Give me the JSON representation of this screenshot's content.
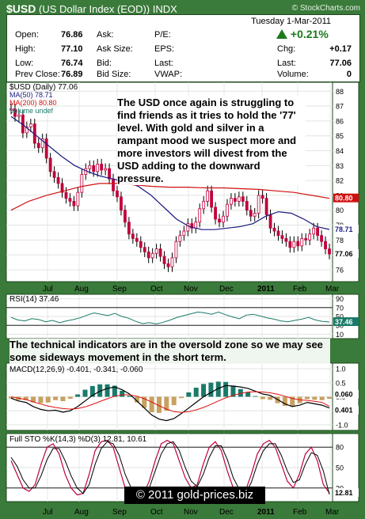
{
  "header": {
    "symbol": "$USD",
    "name": "(US Dollar Index (EOD))",
    "exchange": "INDX",
    "site": "© StockCharts.com"
  },
  "quote": {
    "date": "Tuesday  1-Mar-2011",
    "open_label": "Open:",
    "open": "76.86",
    "high_label": "High:",
    "high": "77.10",
    "low_label": "Low:",
    "low": "76.74",
    "prev_label": "Prev Close:",
    "prev": "76.89",
    "ask_label": "Ask:",
    "asksize_label": "Ask Size:",
    "bid_label": "Bid:",
    "bidsize_label": "Bid Size:",
    "pe_label": "P/E:",
    "eps_label": "EPS:",
    "last_label": "Last:",
    "vwap_label": "VWAP:",
    "change_pct": "+0.21%",
    "chg_label": "Chg:",
    "chg": "+0.17",
    "last2_label": "Last:",
    "last": "77.06",
    "volume_label": "Volume:",
    "volume": "0"
  },
  "colors": {
    "price": "#c0003c",
    "ma50": "#1a1a80",
    "ma200": "#d01010",
    "macd": "#000000",
    "signal": "#e01010",
    "hist": "#1a7a6a",
    "k": "#c0003c",
    "d": "#000000",
    "rsi": "#1a7a6a"
  },
  "notes": {
    "main": "The USD once again is struggling to find friends as it tries to hold the '77' level. With gold and silver in a rampant mood we suspect more and more investors will divest from the USD adding to the downward pressure.",
    "indicators": "The technical indicators are in the oversold zone so we may see some sideways movement in the short term."
  },
  "copyright": "© 2011 gold-prices.biz",
  "chart_data": [
    {
      "type": "candlestick",
      "title": "$USD (Daily) 77.06",
      "legend": [
        "$USD (Daily) 77.06",
        "MA(50) 78.71",
        "MA(200) 80.80",
        "Volume undef"
      ],
      "x_ticks": [
        "Jul",
        "Aug",
        "Sep",
        "Oct",
        "Nov",
        "Dec",
        "2011",
        "Feb",
        "Mar"
      ],
      "y_ticks": [
        76,
        77,
        78,
        79,
        80,
        81,
        82,
        83,
        84,
        85,
        86,
        87,
        88
      ],
      "ylim": [
        75.2,
        88.6
      ],
      "right_labels": [
        "80.80",
        "78.71",
        "77.06"
      ],
      "series": [
        {
          "name": "$USD (Daily) 77.06",
          "values": [
            86.8,
            86.3,
            86.4,
            85.2,
            85.6,
            85.8,
            84.5,
            84.2,
            84.8,
            83.5,
            82.6,
            82.2,
            81.8,
            81.2,
            80.8,
            80.6,
            80.3,
            81.2,
            82.4,
            82.8,
            83.0,
            82.6,
            83.1,
            82.7,
            82.8,
            82.1,
            81.3,
            80.9,
            80.0,
            79.2,
            78.4,
            78.1,
            77.9,
            77.5,
            77.2,
            76.8,
            77.1,
            77.4,
            76.9,
            76.4,
            76.2,
            76.8,
            77.9,
            78.3,
            78.6,
            79.1,
            78.8,
            79.2,
            80.1,
            80.6,
            81.3,
            80.2,
            79.4,
            79.2,
            79.6,
            80.4,
            80.8,
            80.6,
            80.9,
            80.6,
            80.0,
            79.6,
            79.8,
            81.0,
            80.8,
            79.7,
            78.8,
            78.6,
            78.3,
            78.1,
            77.9,
            77.5,
            77.9,
            77.6,
            78.1,
            78.0,
            78.4,
            78.8,
            78.3,
            77.9,
            77.4,
            77.06
          ]
        },
        {
          "name": "MA(50) 78.71",
          "values": [
            86.3,
            85.7,
            85.0,
            84.3,
            83.6,
            83.0,
            82.6,
            82.3,
            82.1,
            81.9,
            81.6,
            81.0,
            80.2,
            79.4,
            78.9,
            78.7,
            78.7,
            78.8,
            78.9,
            79.1,
            79.6,
            79.9,
            79.8,
            79.4,
            78.9,
            78.71
          ]
        },
        {
          "name": "MA(200) 80.80",
          "values": [
            80.0,
            80.6,
            81.0,
            81.3,
            81.6,
            81.8,
            81.8,
            81.7,
            81.6,
            81.55,
            81.55,
            81.5,
            81.5,
            81.45,
            81.4,
            81.3,
            81.2,
            81.0,
            80.8
          ]
        }
      ]
    },
    {
      "type": "line",
      "title": "RSI(14) 37.46",
      "y_ticks": [
        10,
        30,
        50,
        70,
        90
      ],
      "ylim": [
        0,
        100
      ],
      "right_labels": [
        "37.46"
      ],
      "series": [
        {
          "name": "RSI(14) 37.46",
          "values": [
            48,
            42,
            40,
            45,
            43,
            38,
            41,
            36,
            40,
            43,
            47,
            53,
            58,
            55,
            52,
            57,
            50,
            46,
            39,
            34,
            36,
            33,
            37,
            42,
            48,
            52,
            56,
            60,
            58,
            55,
            60,
            54,
            49,
            45,
            53,
            55,
            51,
            47,
            44,
            40,
            38,
            41,
            44,
            48,
            42,
            39,
            37.46
          ]
        }
      ]
    },
    {
      "type": "line",
      "title": "MACD(12,26,9) -0.401, -0.341, -0.060",
      "y_ticks": [
        -1.0,
        -0.5,
        0.0,
        0.5,
        1.0
      ],
      "ylim": [
        -1.2,
        1.2
      ],
      "right_labels": [
        "0.060",
        "0.401"
      ],
      "series": [
        {
          "name": "MACD(12,26,9)",
          "values": [
            -0.05,
            -0.15,
            -0.2,
            -0.35,
            -0.45,
            -0.5,
            -0.48,
            -0.55,
            -0.5,
            -0.35,
            -0.15,
            0.05,
            0.2,
            0.3,
            0.35,
            0.25,
            0.1,
            -0.15,
            -0.4,
            -0.65,
            -0.8,
            -0.85,
            -0.78,
            -0.6,
            -0.4,
            -0.2,
            0.0,
            0.15,
            0.3,
            0.4,
            0.38,
            0.35,
            0.3,
            0.2,
            0.1,
            0.05,
            -0.1,
            -0.25,
            -0.35,
            -0.3,
            -0.2,
            -0.25,
            -0.3,
            -0.401
          ]
        },
        {
          "name": "signal",
          "values": [
            0.0,
            -0.05,
            -0.1,
            -0.18,
            -0.26,
            -0.33,
            -0.38,
            -0.42,
            -0.44,
            -0.42,
            -0.36,
            -0.27,
            -0.17,
            -0.07,
            0.02,
            0.07,
            0.07,
            0.02,
            -0.07,
            -0.19,
            -0.32,
            -0.44,
            -0.53,
            -0.56,
            -0.53,
            -0.47,
            -0.38,
            -0.27,
            -0.15,
            -0.04,
            0.05,
            0.12,
            0.17,
            0.18,
            0.17,
            0.14,
            0.09,
            0.02,
            -0.06,
            -0.11,
            -0.13,
            -0.16,
            -0.2,
            -0.341
          ]
        }
      ]
    },
    {
      "type": "line",
      "title": "Full STO %K(14,3) %D(3) 12.81, 10.61",
      "y_ticks": [
        20,
        50,
        80
      ],
      "ylim": [
        0,
        100
      ],
      "right_labels": [
        "12.81"
      ],
      "series": [
        {
          "name": "%K(14,3)",
          "values": [
            60,
            40,
            20,
            15,
            25,
            55,
            80,
            85,
            70,
            40,
            20,
            10,
            12,
            40,
            75,
            88,
            90,
            80,
            50,
            20,
            8,
            5,
            10,
            30,
            60,
            85,
            90,
            85,
            60,
            35,
            20,
            25,
            55,
            80,
            88,
            75,
            45,
            20,
            10,
            15,
            40,
            70,
            85,
            90,
            80,
            55,
            30,
            20,
            40,
            70,
            80,
            60,
            25,
            12.81
          ]
        },
        {
          "name": "%D(3)",
          "values": [
            65,
            52,
            32,
            20,
            20,
            38,
            62,
            78,
            78,
            60,
            38,
            20,
            12,
            25,
            55,
            78,
            88,
            85,
            68,
            40,
            20,
            10,
            8,
            20,
            45,
            70,
            85,
            88,
            75,
            50,
            30,
            22,
            40,
            65,
            82,
            82,
            62,
            35,
            18,
            12,
            28,
            55,
            75,
            85,
            85,
            68,
            45,
            28,
            32,
            55,
            72,
            68,
            45,
            10.61
          ]
        }
      ]
    }
  ]
}
